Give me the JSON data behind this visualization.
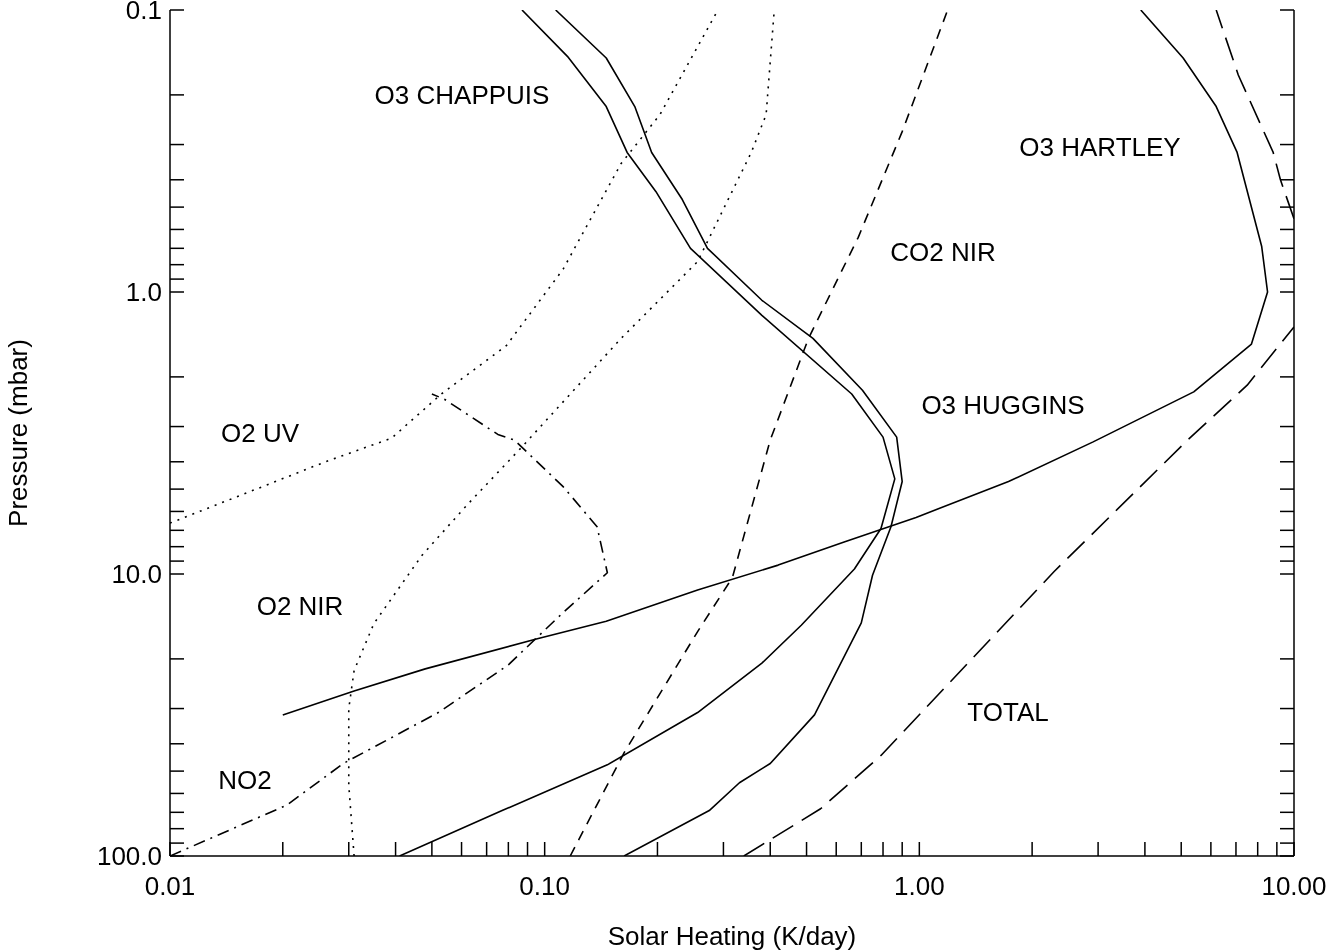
{
  "chart_data": {
    "type": "line",
    "xlabel": "Solar Heating (K/day)",
    "ylabel": "Pressure (mbar)",
    "log": "xy",
    "xlim": [
      0.01,
      10
    ],
    "ylim": [
      100,
      0.1
    ],
    "xticks": [
      {
        "value": 0.01,
        "label": "0.01"
      },
      {
        "value": 0.02,
        "label": null
      },
      {
        "value": 0.03,
        "label": null
      },
      {
        "value": 0.04,
        "label": null
      },
      {
        "value": 0.05,
        "label": null
      },
      {
        "value": 0.06,
        "label": null
      },
      {
        "value": 0.07,
        "label": null
      },
      {
        "value": 0.08,
        "label": null
      },
      {
        "value": 0.09,
        "label": null
      },
      {
        "value": 0.1,
        "label": "0.10"
      },
      {
        "value": 0.2,
        "label": null
      },
      {
        "value": 0.3,
        "label": null
      },
      {
        "value": 0.4,
        "label": null
      },
      {
        "value": 0.5,
        "label": null
      },
      {
        "value": 0.6,
        "label": null
      },
      {
        "value": 0.7,
        "label": null
      },
      {
        "value": 0.8,
        "label": null
      },
      {
        "value": 0.9,
        "label": null
      },
      {
        "value": 1,
        "label": "1.00"
      },
      {
        "value": 2,
        "label": null
      },
      {
        "value": 3,
        "label": null
      },
      {
        "value": 4,
        "label": null
      },
      {
        "value": 5,
        "label": null
      },
      {
        "value": 6,
        "label": null
      },
      {
        "value": 7,
        "label": null
      },
      {
        "value": 8,
        "label": null
      },
      {
        "value": 9,
        "label": null
      },
      {
        "value": 10,
        "label": "10.00"
      }
    ],
    "yticks": [
      {
        "value": 0.1,
        "label": "0.1"
      },
      {
        "value": 0.2,
        "label": null
      },
      {
        "value": 0.3,
        "label": null
      },
      {
        "value": 0.4,
        "label": null
      },
      {
        "value": 0.5,
        "label": null
      },
      {
        "value": 0.6,
        "label": null
      },
      {
        "value": 0.7,
        "label": null
      },
      {
        "value": 0.8,
        "label": null
      },
      {
        "value": 0.9,
        "label": null
      },
      {
        "value": 1,
        "label": "1.0"
      },
      {
        "value": 2,
        "label": null
      },
      {
        "value": 3,
        "label": null
      },
      {
        "value": 4,
        "label": null
      },
      {
        "value": 5,
        "label": null
      },
      {
        "value": 6,
        "label": null
      },
      {
        "value": 7,
        "label": null
      },
      {
        "value": 8,
        "label": null
      },
      {
        "value": 9,
        "label": null
      },
      {
        "value": 10,
        "label": "10.0"
      },
      {
        "value": 20,
        "label": null
      },
      {
        "value": 30,
        "label": null
      },
      {
        "value": 40,
        "label": null
      },
      {
        "value": 50,
        "label": null
      },
      {
        "value": 60,
        "label": null
      },
      {
        "value": 70,
        "label": null
      },
      {
        "value": 80,
        "label": null
      },
      {
        "value": 90,
        "label": null
      },
      {
        "value": 100,
        "label": "100.0"
      }
    ],
    "series": [
      {
        "type": "line",
        "name": "O2 UV",
        "line_style": "dotted",
        "color": "#000000",
        "x": [
          0.01,
          0.026,
          0.039,
          0.053,
          0.079,
          0.112,
          0.16,
          0.203,
          0.29
        ],
        "values": [
          6.6,
          4.0,
          3.3,
          2.3,
          1.55,
          0.83,
          0.35,
          0.235,
          0.1
        ]
      },
      {
        "type": "line",
        "name": "O2 NIR",
        "line_style": "dotted",
        "color": "#000000",
        "x": [
          0.031,
          0.03,
          0.03,
          0.031,
          0.035,
          0.047,
          0.062,
          0.086,
          0.16,
          0.256,
          0.356,
          0.39,
          0.41
        ],
        "values": [
          100,
          56,
          30,
          22,
          15,
          8.6,
          5.7,
          3.6,
          1.46,
          0.78,
          0.32,
          0.235,
          0.1
        ]
      },
      {
        "type": "line",
        "name": "NO2",
        "line_style": "dash_dot",
        "color": "#000000",
        "x": [
          0.01,
          0.0205,
          0.029,
          0.052,
          0.08,
          0.112,
          0.147,
          0.138,
          0.112,
          0.083,
          0.075,
          0.054,
          0.05
        ],
        "values": [
          100,
          66,
          47,
          31,
          21,
          13.7,
          9.9,
          6.8,
          4.9,
          3.35,
          3.2,
          2.4,
          2.3
        ]
      },
      {
        "type": "line",
        "name": "CO2 NIR",
        "line_style": "dashed",
        "color": "#000000",
        "x": [
          0.117,
          0.163,
          0.256,
          0.317,
          0.4,
          0.506,
          0.687,
          0.9,
          1.19
        ],
        "values": [
          100,
          43,
          16,
          10.3,
          3.35,
          1.46,
          0.64,
          0.27,
          0.1
        ]
      },
      {
        "type": "line",
        "name": "TOTAL",
        "line_style": "long_dashed",
        "color": "#000000",
        "x": [
          0.34,
          0.545,
          0.79,
          2.29,
          5.2,
          7.5,
          10
        ],
        "values": [
          100,
          68,
          44,
          9.8,
          3.35,
          2.14,
          1.33
        ]
      },
      {
        "type": "line",
        "line_style": "long_dashed",
        "color": "#000000",
        "x": [
          10,
          9.2,
          8.8,
          7.1,
          6.2
        ],
        "values": [
          0.55,
          0.4,
          0.32,
          0.17,
          0.1
        ]
      },
      {
        "type": "line",
        "name": "O3 HARTLEY",
        "line_style": "solid",
        "color": "#000000",
        "x": [
          0.02,
          0.031,
          0.048,
          0.095,
          0.146,
          0.256,
          0.42,
          0.63,
          0.98,
          1.73,
          2.91,
          5.4,
          7.7,
          8.5,
          8.2,
          7.05,
          6.2,
          5.06,
          3.9
        ],
        "values": [
          31.6,
          26,
          21.7,
          17,
          14.7,
          11.4,
          9.3,
          7.7,
          6.3,
          4.7,
          3.4,
          2.26,
          1.53,
          1.0,
          0.69,
          0.32,
          0.22,
          0.148,
          0.1
        ]
      },
      {
        "type": "line",
        "name": "O3 CHAPPUIS",
        "line_style": "solid",
        "color": "#000000",
        "x": [
          0.041,
          0.077,
          0.147,
          0.256,
          0.38,
          0.484,
          0.671,
          0.79,
          0.86,
          0.8,
          0.66,
          0.38,
          0.245,
          0.198,
          0.166,
          0.146,
          0.115,
          0.087
        ],
        "values": [
          100,
          69,
          47.5,
          31,
          20.7,
          15.2,
          9.6,
          6.9,
          4.6,
          3.27,
          2.3,
          1.21,
          0.7,
          0.44,
          0.32,
          0.22,
          0.146,
          0.1
        ]
      },
      {
        "type": "line",
        "name": "O3 HUGGINS",
        "line_style": "solid",
        "color": "#000000",
        "x": [
          0.163,
          0.275,
          0.331,
          0.4,
          0.525,
          0.7,
          0.75,
          0.84,
          0.9,
          0.87,
          0.705,
          0.52,
          0.38,
          0.272,
          0.233,
          0.193,
          0.174,
          0.146,
          0.107
        ],
        "values": [
          100,
          69,
          55,
          47,
          31.6,
          14.9,
          10.1,
          6.8,
          4.7,
          3.27,
          2.23,
          1.46,
          1.07,
          0.7,
          0.47,
          0.32,
          0.22,
          0.148,
          0.1
        ]
      }
    ]
  }
}
